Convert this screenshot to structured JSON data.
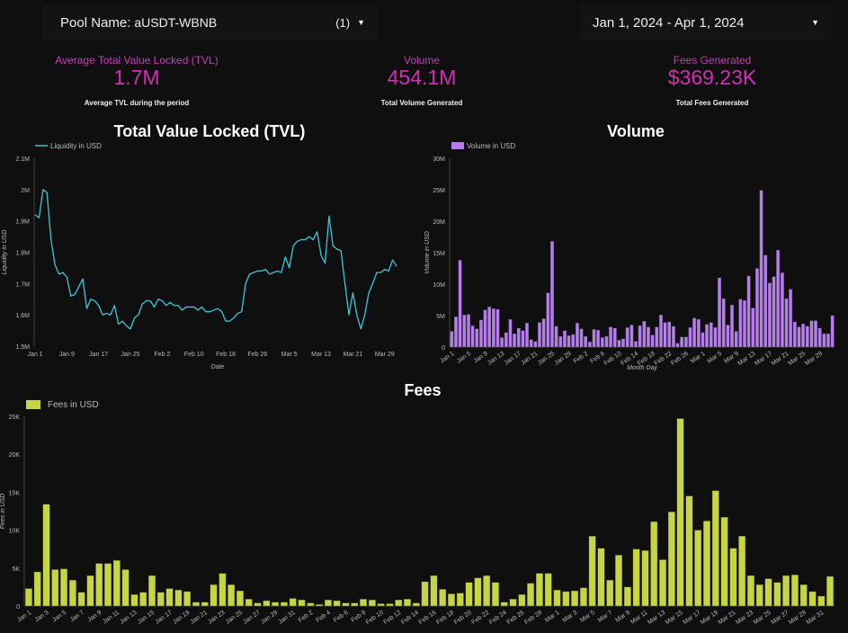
{
  "filters": {
    "pool_label": "Pool Name:",
    "pool_value": "aUSDT-WBNB",
    "pool_count": "(1)",
    "date_range": "Jan 1, 2024 - Apr 1, 2024"
  },
  "kpis": [
    {
      "label": "Average Total Value Locked (TVL)",
      "value": "1.7M",
      "sub": "Average TVL during the period"
    },
    {
      "label": "Volume",
      "value": "454.1M",
      "sub": "Total Volume Generated"
    },
    {
      "label": "Fees Generated",
      "value": "$369.23K",
      "sub": "Total Fees Generated"
    }
  ],
  "colors": {
    "tvl": "#3cc6d6",
    "volume": "#b77cef",
    "fees": "#c7d540",
    "accent": "#d52db5"
  },
  "chart_data": [
    {
      "type": "line",
      "title": "Total Value Locked (TVL)",
      "legend": "Liquidity in USD",
      "xlabel": "Date",
      "ylabel": "Liquidity in USD",
      "ylim": [
        1.5,
        2.1
      ],
      "yticks": [
        "1.5M",
        "1.6M",
        "1.7M",
        "1.8M",
        "1.9M",
        "2M",
        "2.1M"
      ],
      "xticks": [
        "Jan 1",
        "Jan 9",
        "Jan 17",
        "Jan 25",
        "Feb 2",
        "Feb 10",
        "Feb 18",
        "Feb 26",
        "Mar 5",
        "Mar 13",
        "Mar 21",
        "Mar 29"
      ],
      "xtick_step": 8,
      "values": [
        1.92,
        1.91,
        2.0,
        1.99,
        1.84,
        1.76,
        1.73,
        1.735,
        1.72,
        1.66,
        1.665,
        1.69,
        1.715,
        1.62,
        1.65,
        1.645,
        1.63,
        1.6,
        1.605,
        1.6,
        1.63,
        1.57,
        1.58,
        1.565,
        1.555,
        1.59,
        1.6,
        1.635,
        1.645,
        1.645,
        1.625,
        1.65,
        1.645,
        1.63,
        1.64,
        1.63,
        1.63,
        1.615,
        1.625,
        1.625,
        1.625,
        1.615,
        1.625,
        1.61,
        1.61,
        1.615,
        1.62,
        1.61,
        1.58,
        1.58,
        1.59,
        1.605,
        1.61,
        1.7,
        1.73,
        1.735,
        1.74,
        1.74,
        1.745,
        1.73,
        1.735,
        1.74,
        1.735,
        1.785,
        1.75,
        1.82,
        1.835,
        1.84,
        1.84,
        1.85,
        1.84,
        1.865,
        1.79,
        1.765,
        1.915,
        1.82,
        1.81,
        1.805,
        1.7,
        1.6,
        1.67,
        1.6,
        1.555,
        1.6,
        1.67,
        1.7,
        1.735,
        1.735,
        1.745,
        1.74,
        1.775,
        1.755
      ]
    },
    {
      "type": "bar",
      "title": "Volume",
      "legend": "Volume in USD",
      "xlabel": "Month Day",
      "ylabel": "Volume in USD",
      "ylim": [
        0,
        30
      ],
      "unit": "M",
      "yticks": [
        "0",
        "5M",
        "10M",
        "15M",
        "20M",
        "25M",
        "30M"
      ],
      "xticks": [
        "Jan 1",
        "Jan 5",
        "Jan 9",
        "Jan 13",
        "Jan 17",
        "Jan 21",
        "Jan 25",
        "Jan 29",
        "Feb 2",
        "Feb 6",
        "Feb 10",
        "Feb 14",
        "Feb 18",
        "Feb 22",
        "Feb 26",
        "Mar 1",
        "Mar 5",
        "Mar 9",
        "Mar 13",
        "Mar 17",
        "Mar 21",
        "Mar 25",
        "Mar 29"
      ],
      "xtick_step": 4,
      "values": [
        2.5,
        4.8,
        13.8,
        5.1,
        5.2,
        3.4,
        2.9,
        4.3,
        5.9,
        6.4,
        6.1,
        6.0,
        1.5,
        2.3,
        4.4,
        2.1,
        3.0,
        2.6,
        3.8,
        1.2,
        0.9,
        3.9,
        4.5,
        8.6,
        16.8,
        3.3,
        1.7,
        2.6,
        1.8,
        2.0,
        3.8,
        2.9,
        1.7,
        0.8,
        2.8,
        2.7,
        1.5,
        1.7,
        3.2,
        3.0,
        1.1,
        1.3,
        3.1,
        3.5,
        0.9,
        3.4,
        4.1,
        3.2,
        1.9,
        3.2,
        5.1,
        3.9,
        4.0,
        3.3,
        0.6,
        1.6,
        1.6,
        3.1,
        4.6,
        4.4,
        2.3,
        3.6,
        3.9,
        3.1,
        11.0,
        7.7,
        3.5,
        6.7,
        2.5,
        7.6,
        7.4,
        11.3,
        6.2,
        12.5,
        24.9,
        14.6,
        10.2,
        11.2,
        15.4,
        11.8,
        7.7,
        9.2,
        4.0,
        3.2,
        3.7,
        3.3,
        4.2,
        4.2,
        3.0,
        2.1,
        2.1,
        5.0
      ]
    },
    {
      "type": "bar",
      "title": "Fees",
      "legend": "Fees in USD",
      "ylabel": "Fees in USD",
      "ylim": [
        0,
        25
      ],
      "unit": "K",
      "yticks": [
        "0",
        "5K",
        "10K",
        "15K",
        "20K",
        "25K"
      ],
      "xticks": [
        "Jan 1",
        "Jan 3",
        "Jan 5",
        "Jan 7",
        "Jan 9",
        "Jan 11",
        "Jan 13",
        "Jan 15",
        "Jan 17",
        "Jan 19",
        "Jan 21",
        "Jan 23",
        "Jan 25",
        "Jan 27",
        "Jan 29",
        "Jan 31",
        "Feb 2",
        "Feb 4",
        "Feb 6",
        "Feb 8",
        "Feb 10",
        "Feb 12",
        "Feb 14",
        "Feb 16",
        "Feb 18",
        "Feb 20",
        "Feb 22",
        "Feb 24",
        "Feb 26",
        "Feb 28",
        "Mar 1",
        "Mar 3",
        "Mar 5",
        "Mar 7",
        "Mar 9",
        "Mar 11",
        "Mar 13",
        "Mar 15",
        "Mar 17",
        "Mar 19",
        "Mar 21",
        "Mar 23",
        "Mar 25",
        "Mar 27",
        "Mar 29",
        "Mar 31"
      ],
      "xtick_step": 2,
      "values": [
        2.3,
        4.5,
        13.4,
        4.8,
        4.9,
        3.4,
        1.8,
        4.0,
        5.6,
        5.6,
        6.0,
        4.8,
        1.5,
        1.8,
        4.0,
        1.8,
        2.3,
        2.1,
        1.9,
        0.5,
        0.5,
        2.8,
        4.3,
        2.8,
        2.0,
        0.9,
        0.4,
        0.7,
        0.5,
        0.5,
        1.0,
        0.8,
        0.4,
        0.2,
        0.8,
        0.7,
        0.4,
        0.4,
        0.9,
        0.8,
        0.3,
        0.3,
        0.8,
        0.9,
        0.4,
        3.2,
        4.0,
        2.2,
        1.6,
        1.7,
        3.1,
        3.7,
        4.0,
        3.1,
        0.5,
        0.9,
        1.5,
        3.0,
        4.3,
        4.3,
        2.1,
        1.9,
        2.0,
        2.4,
        9.2,
        7.6,
        3.4,
        6.7,
        2.5,
        7.5,
        7.3,
        11.1,
        6.1,
        12.4,
        24.7,
        14.5,
        10.0,
        11.2,
        15.2,
        11.7,
        7.6,
        9.2,
        4.0,
        2.8,
        3.6,
        3.1,
        4.0,
        4.1,
        2.8,
        1.9,
        1.3,
        3.9
      ]
    }
  ]
}
